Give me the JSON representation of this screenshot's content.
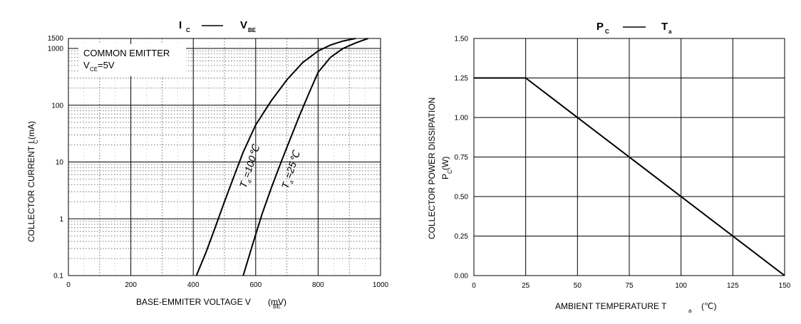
{
  "chart_data": [
    {
      "type": "line",
      "title_main": "I",
      "title_main_sub": "C",
      "title_vs": "V",
      "title_vs_sub": "BE",
      "xlabel_prefix": "BASE-EMMITER VOLTAGE V",
      "xlabel_sub": "BE",
      "xlabel_unit": "(mV)",
      "ylabel_prefix": "COLLECTOR CURRENT  I",
      "ylabel_sub": "C",
      "ylabel_unit": "(mA)",
      "xlim": [
        0,
        1000
      ],
      "ylim": [
        0.1,
        1500
      ],
      "yscale": "log",
      "grid": true,
      "x_ticks": [
        0,
        200,
        400,
        600,
        800,
        1000
      ],
      "x_tick_labels": [
        "0",
        "200",
        "400",
        "600",
        "800",
        "1000"
      ],
      "y_ticks": [
        0.1,
        1,
        10,
        100,
        1000,
        1500
      ],
      "y_tick_labels": [
        "0.1",
        "1",
        "10",
        "100",
        "1000",
        "1500"
      ],
      "annotation_line1": "COMMON EMITTER",
      "annotation_line2_prefix": "V",
      "annotation_line2_sub": "CE",
      "annotation_line2_suffix": "=5V",
      "series": [
        {
          "label_prefix": "T",
          "label_sub": "a",
          "label_suffix": "=100℃",
          "x": [
            410,
            440,
            470,
            500,
            530,
            560,
            600,
            650,
            700,
            750,
            800,
            840,
            880,
            920
          ],
          "y": [
            0.1,
            0.25,
            0.7,
            2.0,
            5.5,
            15,
            45,
            120,
            280,
            560,
            900,
            1150,
            1350,
            1500
          ]
        },
        {
          "label_prefix": "T",
          "label_sub": "a",
          "label_suffix": "=25℃",
          "x": [
            560,
            590,
            620,
            650,
            680,
            710,
            740,
            770,
            800,
            840,
            880,
            920,
            960
          ],
          "y": [
            0.1,
            0.35,
            1.2,
            3.5,
            9.5,
            25,
            65,
            160,
            380,
            700,
            1000,
            1250,
            1500
          ]
        }
      ]
    },
    {
      "type": "line",
      "title_main": "P",
      "title_main_sub": "C",
      "title_vs": "T",
      "title_vs_sub": "a",
      "xlabel_prefix": "AMBIENT TEMPERATURE    T",
      "xlabel_sub": "a",
      "xlabel_unit": "(℃)",
      "ylabel_prefix": "COLLECTOR POWER DISSIPATION",
      "ylabel2_prefix": "P",
      "ylabel2_sub": "C",
      "ylabel2_unit": "(W)",
      "xlim": [
        0,
        150
      ],
      "ylim": [
        0,
        1.5
      ],
      "grid": true,
      "x_ticks": [
        0,
        25,
        50,
        75,
        100,
        125,
        150
      ],
      "x_tick_labels": [
        "0",
        "25",
        "50",
        "75",
        "100",
        "125",
        "150"
      ],
      "y_ticks": [
        0,
        0.25,
        0.5,
        0.75,
        1.0,
        1.25,
        1.5
      ],
      "y_tick_labels": [
        "0.00",
        "0.25",
        "0.50",
        "0.75",
        "1.00",
        "1.25",
        "1.50"
      ],
      "series": [
        {
          "x": [
            0,
            25,
            150
          ],
          "y": [
            1.25,
            1.25,
            0
          ]
        }
      ]
    }
  ]
}
